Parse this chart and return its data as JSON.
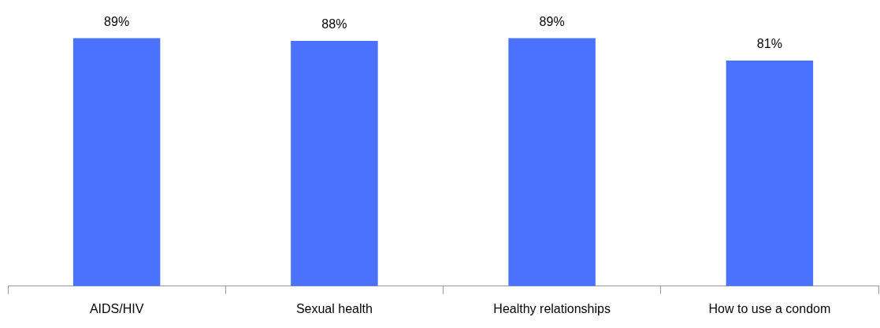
{
  "chart_data": {
    "type": "bar",
    "categories": [
      "AIDS/HIV",
      "Sexual health",
      "Healthy relationships",
      "How to use a condom"
    ],
    "values": [
      89,
      88,
      89,
      81
    ],
    "value_labels": [
      "89%",
      "88%",
      "89%",
      "81%"
    ],
    "color": "#4a72ff",
    "grid": false,
    "legend": false,
    "tick_labels": "x"
  }
}
